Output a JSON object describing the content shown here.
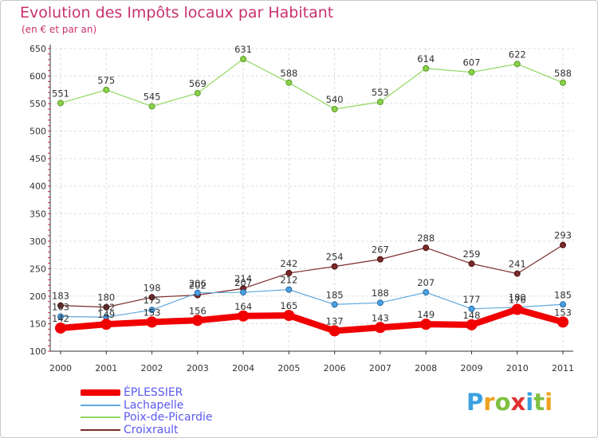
{
  "header": {
    "title": "Evolution des Impôts locaux par Habitant",
    "subtitle": "(en € et par an)"
  },
  "logo": {
    "letters": [
      "P",
      "r",
      "o",
      "x",
      "i",
      "t",
      "i"
    ],
    "colors": [
      "#3aa0e0",
      "#f0a020",
      "#80c040",
      "#e03030",
      "#3aa0e0",
      "#80c040",
      "#f0a020"
    ]
  },
  "chart_data": {
    "type": "line",
    "title": "Evolution des Impôts locaux par Habitant",
    "subtitle": "(en € et par an)",
    "x": [
      2000,
      2001,
      2002,
      2003,
      2004,
      2005,
      2006,
      2007,
      2008,
      2009,
      2010,
      2011
    ],
    "x_tick_labels": [
      "2000",
      "2001",
      "2002",
      "2003",
      "2004",
      "2005",
      "2006",
      "2007",
      "2008",
      "2009",
      "2010",
      "2011"
    ],
    "ylim": [
      100,
      650
    ],
    "y_ticks": [
      100,
      150,
      200,
      250,
      300,
      350,
      400,
      450,
      500,
      550,
      600,
      650
    ],
    "y_tick_labels": [
      "100",
      "150",
      "200",
      "250",
      "300",
      "350",
      "400",
      "450",
      "500",
      "550",
      "600",
      "650"
    ],
    "grid": true,
    "legend_position": "bottom-left",
    "series": [
      {
        "name": "Poix-de-Picardie",
        "color": "#90d860",
        "values": [
          551,
          575,
          545,
          569,
          631,
          588,
          540,
          553,
          614,
          607,
          622,
          588
        ],
        "labels": [
          "551",
          "575",
          "545",
          "569",
          "631",
          "588",
          "540",
          "553",
          "614",
          "607",
          "622",
          "588"
        ]
      },
      {
        "name": "Croixrault",
        "color": "#7a2a2a",
        "values": [
          183,
          180,
          198,
          202,
          214,
          242,
          254,
          267,
          288,
          259,
          241,
          293
        ],
        "labels": [
          "183",
          "180",
          "198",
          "202",
          "214",
          "242",
          "254",
          "267",
          "288",
          "259",
          "241",
          "293"
        ]
      },
      {
        "name": "Lachapelle",
        "color": "#5fa8dc",
        "values": [
          163,
          162,
          175,
          206,
          207,
          212,
          185,
          188,
          207,
          177,
          180,
          185
        ],
        "labels": [
          "163",
          "162",
          "175",
          "206",
          "207",
          "212",
          "185",
          "188",
          "207",
          "177",
          "180",
          "185"
        ]
      },
      {
        "name": "ÉPLESSIER",
        "color": "#f00000",
        "values": [
          142,
          149,
          153,
          156,
          164,
          165,
          137,
          143,
          149,
          148,
          176,
          153
        ],
        "labels": [
          "142",
          "149",
          "153",
          "156",
          "164",
          "165",
          "137",
          "143",
          "149",
          "148",
          "176",
          "153"
        ]
      }
    ],
    "legend": [
      "ÉPLESSIER",
      "Lachapelle",
      "Poix-de-Picardie",
      "Croixrault"
    ]
  }
}
